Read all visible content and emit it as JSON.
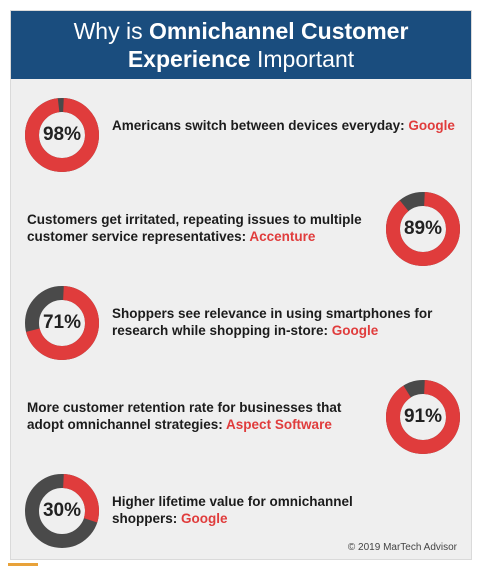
{
  "header": {
    "title_prefix": "Why is ",
    "title_bold_1": "Omnichannel Customer",
    "title_bold_2": "Experience",
    "title_suffix": " Important"
  },
  "chart_data": {
    "type": "pie",
    "items": [
      {
        "percent": 98,
        "label": "98%",
        "text": "Americans switch between devices everyday: ",
        "source": "Google"
      },
      {
        "percent": 89,
        "label": "89%",
        "text": "Customers get irritated, repeating issues to multiple customer service representatives: ",
        "source": "Accenture"
      },
      {
        "percent": 71,
        "label": "71%",
        "text": "Shoppers see relevance in using smartphones for research while shopping in-store: ",
        "source": "Google"
      },
      {
        "percent": 91,
        "label": "91%",
        "text": "More customer retention rate for businesses that adopt omnichannel strategies: ",
        "source": "Aspect Software"
      },
      {
        "percent": 30,
        "label": "30%",
        "text": "Higher lifetime value for omnichannel shoppers: ",
        "source": "Google"
      }
    ]
  },
  "colors": {
    "fill": "#e03c3c",
    "remainder": "#4a4a4a",
    "header_bg": "#1a4d7e"
  },
  "footer": {
    "copyright": "© 2019 MarTech Advisor"
  }
}
